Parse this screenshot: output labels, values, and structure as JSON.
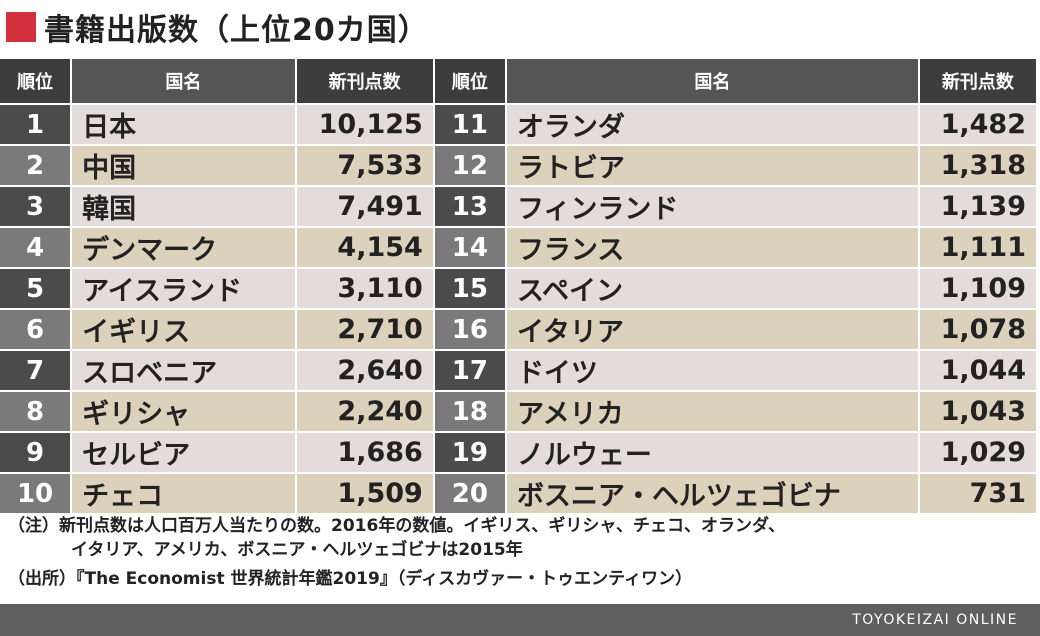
{
  "title": "書籍出版数（上位20カ国）",
  "colors": {
    "accent": "#d2303c",
    "header_dark": "#3d3d3d",
    "header_mid": "#555555",
    "rank_dark": "#4b4b4b",
    "rank_light": "#7a7a7a",
    "row_a": "#e4dcdc",
    "row_b": "#dcd2bc",
    "footer": "#5f5f5f"
  },
  "headers": {
    "rank": "順位",
    "country": "国名",
    "value": "新刊点数"
  },
  "rows_left": [
    {
      "rank": "1",
      "country": "日本",
      "value": "10,125"
    },
    {
      "rank": "2",
      "country": "中国",
      "value": "7,533"
    },
    {
      "rank": "3",
      "country": "韓国",
      "value": "7,491"
    },
    {
      "rank": "4",
      "country": "デンマーク",
      "value": "4,154"
    },
    {
      "rank": "5",
      "country": "アイスランド",
      "value": "3,110"
    },
    {
      "rank": "6",
      "country": "イギリス",
      "value": "2,710"
    },
    {
      "rank": "7",
      "country": "スロベニア",
      "value": "2,640"
    },
    {
      "rank": "8",
      "country": "ギリシャ",
      "value": "2,240"
    },
    {
      "rank": "9",
      "country": "セルビア",
      "value": "1,686"
    },
    {
      "rank": "10",
      "country": "チェコ",
      "value": "1,509"
    }
  ],
  "rows_right": [
    {
      "rank": "11",
      "country": "オランダ",
      "value": "1,482"
    },
    {
      "rank": "12",
      "country": "ラトビア",
      "value": "1,318"
    },
    {
      "rank": "13",
      "country": "フィンランド",
      "value": "1,139"
    },
    {
      "rank": "14",
      "country": "フランス",
      "value": "1,111"
    },
    {
      "rank": "15",
      "country": "スペイン",
      "value": "1,109"
    },
    {
      "rank": "16",
      "country": "イタリア",
      "value": "1,078"
    },
    {
      "rank": "17",
      "country": "ドイツ",
      "value": "1,044"
    },
    {
      "rank": "18",
      "country": "アメリカ",
      "value": "1,043"
    },
    {
      "rank": "19",
      "country": "ノルウェー",
      "value": "1,029"
    },
    {
      "rank": "20",
      "country": "ボスニア・ヘルツェゴビナ",
      "value": "731"
    }
  ],
  "notes": {
    "note_line1": "（注）新刊点数は人口百万人当たりの数。2016年の数値。イギリス、ギリシャ、チェコ、オランダ、",
    "note_line2": "イタリア、アメリカ、ボスニア・ヘルツェゴビナは2015年",
    "source": "（出所）『The Economist 世界統計年鑑2019』（ディスカヴァー・トゥエンティワン）"
  },
  "footer": "TOYOKEIZAI ONLINE"
}
